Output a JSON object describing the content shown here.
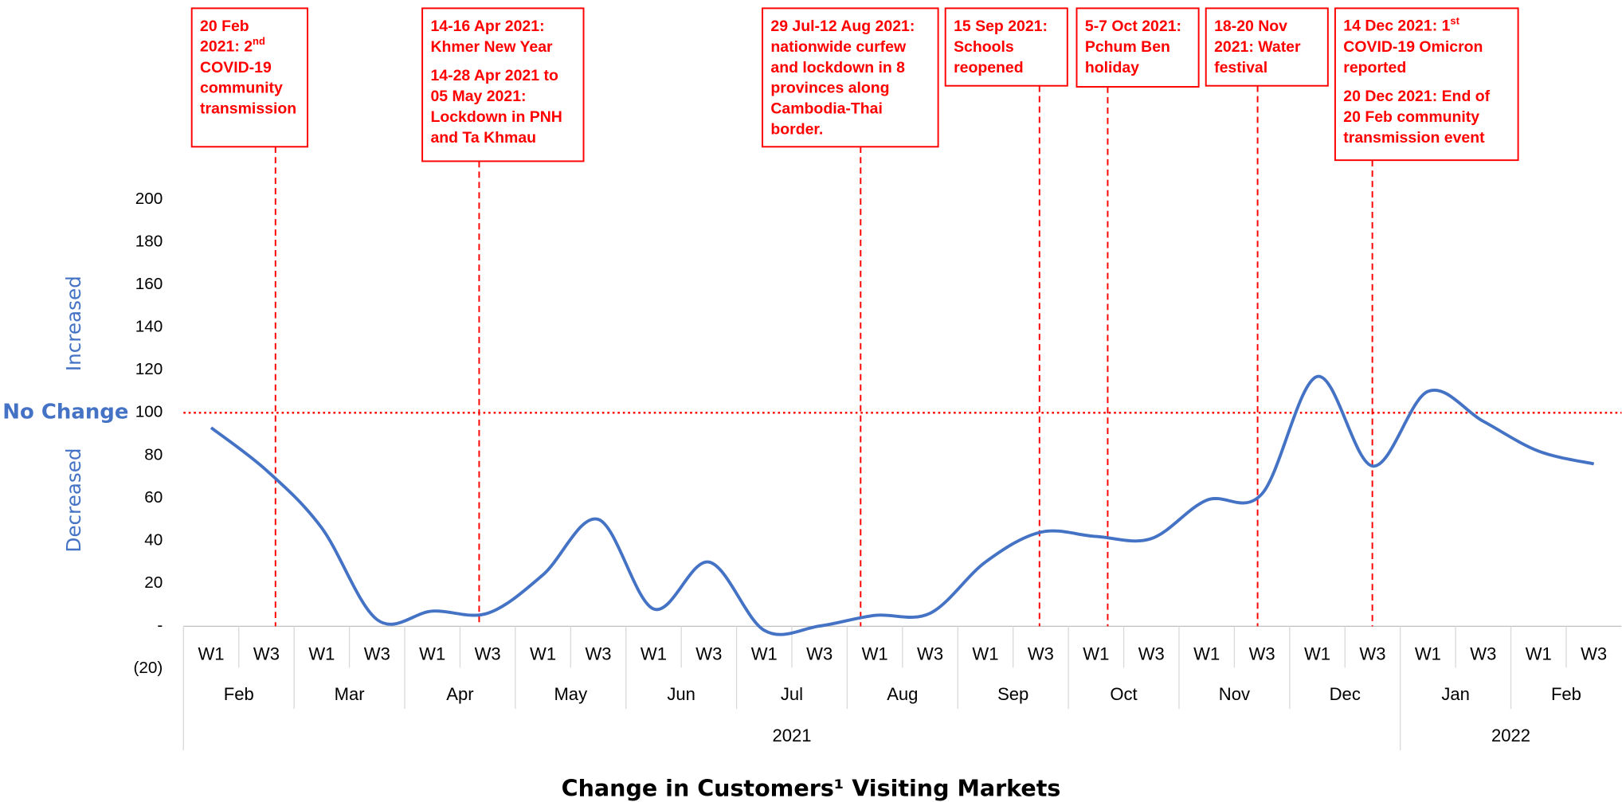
{
  "chart_data": {
    "type": "line",
    "title": "Change in Customers¹ Visiting Markets",
    "categories": [
      "W1",
      "W3",
      "W1",
      "W3",
      "W1",
      "W3",
      "W1",
      "W3",
      "W1",
      "W3",
      "W1",
      "W3",
      "W1",
      "W3",
      "W1",
      "W3",
      "W1",
      "W3",
      "W1",
      "W3",
      "W1",
      "W3",
      "W1",
      "W3",
      "W1",
      "W3"
    ],
    "years": [
      {
        "label": "2021",
        "months": [
          "Feb",
          "Mar",
          "Apr",
          "May",
          "Jun",
          "Jul",
          "Aug",
          "Sep",
          "Oct",
          "Nov",
          "Dec"
        ]
      },
      {
        "label": "2022",
        "months": [
          "Jan",
          "Feb"
        ]
      }
    ],
    "series": [
      {
        "name": "Customers visiting markets",
        "color": "#4472c4",
        "values": [
          93,
          73,
          46,
          3,
          7,
          6,
          24,
          50,
          8,
          30,
          -2,
          0,
          5,
          6,
          30,
          44,
          42,
          41,
          59,
          62,
          117,
          75,
          110,
          96,
          82,
          76
        ]
      }
    ],
    "ylim": [
      -20,
      200
    ],
    "yticks": [
      {
        "value": -20,
        "label": "(20)"
      },
      {
        "value": 0,
        "label": "-"
      },
      20,
      40,
      60,
      80,
      100,
      120,
      140,
      160,
      180,
      200
    ],
    "reference_line": {
      "value": 100,
      "label": "No Change",
      "color": "#ff0000"
    },
    "above_label": "Increased",
    "below_label": "Decreased",
    "annotation_color": "#ff0000",
    "annotations": [
      {
        "paragraphs": [
          [
            "20 Feb",
            {
              "text": "2021: 2",
              "sup": "nd"
            },
            "COVID-19",
            "community",
            "transmission"
          ]
        ]
      },
      {
        "paragraphs": [
          [
            "14-16 Apr 2021:",
            "Khmer New Year"
          ],
          [
            "14-28 Apr 2021 to",
            "05 May 2021:",
            "Lockdown in PNH",
            "and Ta Khmau"
          ]
        ]
      },
      {
        "paragraphs": [
          [
            "29 Jul-12 Aug 2021:",
            "nationwide curfew",
            "and lockdown in 8",
            "provinces along",
            "Cambodia-Thai",
            "border."
          ]
        ]
      },
      {
        "paragraphs": [
          [
            "15 Sep 2021:",
            "Schools",
            "reopened"
          ]
        ]
      },
      {
        "paragraphs": [
          [
            "5-7 Oct 2021:",
            "Pchum Ben",
            "holiday"
          ]
        ]
      },
      {
        "paragraphs": [
          [
            "18-20 Nov",
            "2021: Water",
            "festival"
          ]
        ]
      },
      {
        "paragraphs": [
          [
            {
              "text": "14 Dec 2021: 1",
              "sup": "st"
            },
            "COVID-19 Omicron",
            "reported"
          ],
          [
            "20 Dec 2021: End of",
            "20 Feb community",
            "transmission event"
          ]
        ]
      }
    ]
  }
}
